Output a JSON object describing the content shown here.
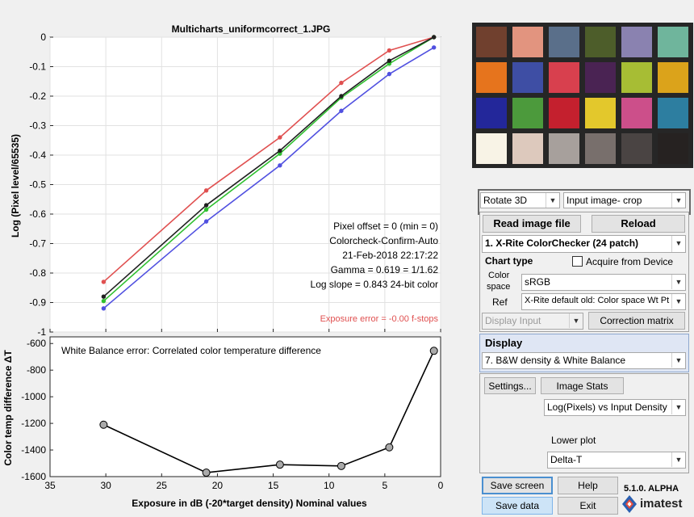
{
  "chart_data": [
    {
      "type": "line",
      "title": "Multicharts_uniformcorrect_1.JPG",
      "ylabel": "Log (Pixel level/65535)",
      "xlabel": "",
      "xlim": [
        35,
        0
      ],
      "ylim": [
        -1,
        0
      ],
      "xticks": [
        "35",
        "30",
        "25",
        "20",
        "15",
        "10",
        "5",
        "0"
      ],
      "yticks": [
        "0",
        "-0.1",
        "-0.2",
        "-0.3",
        "-0.4",
        "-0.5",
        "-0.6",
        "-0.7",
        "-0.8",
        "-0.9",
        "-1"
      ],
      "grid": true,
      "series": [
        {
          "color": "#e05050",
          "x": [
            30.2,
            21.0,
            14.4,
            8.9,
            4.6,
            0.6
          ],
          "y": [
            -0.83,
            -0.52,
            -0.34,
            -0.155,
            -0.045,
            0
          ]
        },
        {
          "color": "#30c030",
          "x": [
            30.2,
            21.0,
            14.4,
            8.9,
            4.6,
            0.6
          ],
          "y": [
            -0.895,
            -0.585,
            -0.395,
            -0.205,
            -0.09,
            0
          ]
        },
        {
          "color": "#5050e0",
          "x": [
            30.2,
            21.0,
            14.4,
            8.9,
            4.6,
            0.6
          ],
          "y": [
            -0.92,
            -0.625,
            -0.435,
            -0.25,
            -0.125,
            -0.035
          ]
        },
        {
          "color": "#202020",
          "x": [
            30.2,
            21.0,
            14.4,
            8.9,
            4.6,
            0.6
          ],
          "y": [
            -0.88,
            -0.57,
            -0.385,
            -0.2,
            -0.08,
            0
          ]
        }
      ],
      "annotations": [
        "Pixel offset = 0  (min = 0)",
        "Colorcheck-Confirm-Auto",
        "21-Feb-2018 22:17:22",
        "Gamma = 0.619 = 1/1.62",
        "Log slope = 0.843   24-bit color"
      ],
      "exposure_error": "Exposure error = -0.00 f-stops"
    },
    {
      "type": "line",
      "title": "White Balance error: Correlated color temperature difference",
      "ylabel": "Color temp difference  ΔT",
      "xlabel": "Exposure in dB (-20*target density)   Nominal values",
      "xlim": [
        35,
        0
      ],
      "ylim": [
        -1600,
        -550
      ],
      "xticks": [
        "35",
        "30",
        "25",
        "20",
        "15",
        "10",
        "5",
        "0"
      ],
      "yticks": [
        "-600",
        "-800",
        "-1000",
        "-1200",
        "-1400",
        "-1600"
      ],
      "grid": false,
      "series": [
        {
          "color": "#000000",
          "x": [
            30.2,
            21.0,
            14.4,
            8.9,
            4.6,
            0.6
          ],
          "y": [
            -1210,
            -1570,
            -1510,
            -1520,
            -1380,
            -655
          ]
        }
      ]
    }
  ],
  "swatch_colors": [
    "#70402e",
    "#e2947f",
    "#5a6f8a",
    "#4d5d2a",
    "#8a82b0",
    "#6fb59c",
    "#e6741d",
    "#3e4ea4",
    "#d8404e",
    "#4a2353",
    "#a7bd34",
    "#dba31b",
    "#23279a",
    "#4c9a3c",
    "#c4202e",
    "#e3c82c",
    "#cc4f8a",
    "#2d7ea0",
    "#f8f3e6",
    "#ddc9bd",
    "#a7a09c",
    "#786f6c",
    "#4a4443",
    "#262221"
  ],
  "controls": {
    "rotate": "Rotate 3D",
    "input_image": "Input image- crop",
    "read_image": "Read image file",
    "reload": "Reload",
    "chart_select": "1.  X-Rite ColorChecker (24 patch)",
    "chart_type": "Chart type",
    "acquire": "Acquire from Device",
    "color_space_label1": "Color",
    "color_space_label2": "space",
    "color_space": "sRGB",
    "ref_label": "Ref",
    "ref_value": "X-Rite default old: Color space Wt Pt",
    "display_input": "Display Input",
    "correction_matrix": "Correction matrix",
    "display_header": "Display",
    "display_select": "7.  B&W density & White Balance",
    "settings": "Settings...",
    "image_stats": "Image Stats",
    "plot_select": "Log(Pixels) vs Input Density",
    "lower_plot_label": "Lower plot",
    "lower_plot": "Delta-T",
    "save_screen": "Save screen",
    "help": "Help",
    "version": "5.1.0. ALPHA",
    "save_data": "Save data",
    "exit": "Exit",
    "brand": "imatest"
  }
}
